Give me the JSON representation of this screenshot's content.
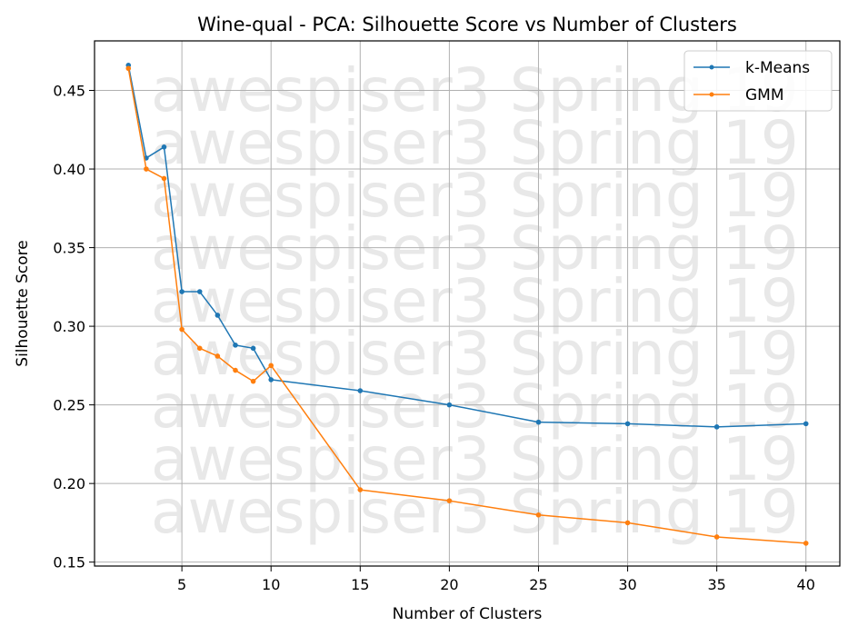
{
  "chart_data": {
    "type": "line",
    "title": "Wine-qual - PCA: Silhouette Score vs Number of Clusters",
    "xlabel": "Number of Clusters",
    "ylabel": "Silhouette Score",
    "xlim": [
      0.1,
      41.9
    ],
    "ylim": [
      0.1475,
      0.4815
    ],
    "x_ticks": [
      5,
      10,
      15,
      20,
      25,
      30,
      35,
      40
    ],
    "y_ticks": [
      0.15,
      0.2,
      0.25,
      0.3,
      0.35,
      0.4,
      0.45
    ],
    "x_tick_labels": [
      "5",
      "10",
      "15",
      "20",
      "25",
      "30",
      "35",
      "40"
    ],
    "y_tick_labels": [
      "0.15",
      "0.20",
      "0.25",
      "0.30",
      "0.35",
      "0.40",
      "0.45"
    ],
    "grid": true,
    "legend_position": "top-right",
    "x": [
      2,
      3,
      4,
      5,
      6,
      7,
      8,
      9,
      10,
      15,
      20,
      25,
      30,
      35,
      40
    ],
    "series": [
      {
        "name": "k-Means",
        "color": "#1f77b4",
        "values": [
          0.466,
          0.407,
          0.414,
          0.322,
          0.322,
          0.307,
          0.288,
          0.286,
          0.266,
          0.259,
          0.25,
          0.239,
          0.238,
          0.236,
          0.238
        ]
      },
      {
        "name": "GMM",
        "color": "#ff7f0e",
        "values": [
          0.464,
          0.4,
          0.394,
          0.298,
          0.286,
          0.281,
          0.272,
          0.265,
          0.275,
          0.196,
          0.189,
          0.18,
          0.175,
          0.166,
          0.162
        ]
      }
    ],
    "watermark": {
      "text": "awespiser3 Spring 19",
      "color": "#e8e8e8",
      "lines": 9
    }
  }
}
